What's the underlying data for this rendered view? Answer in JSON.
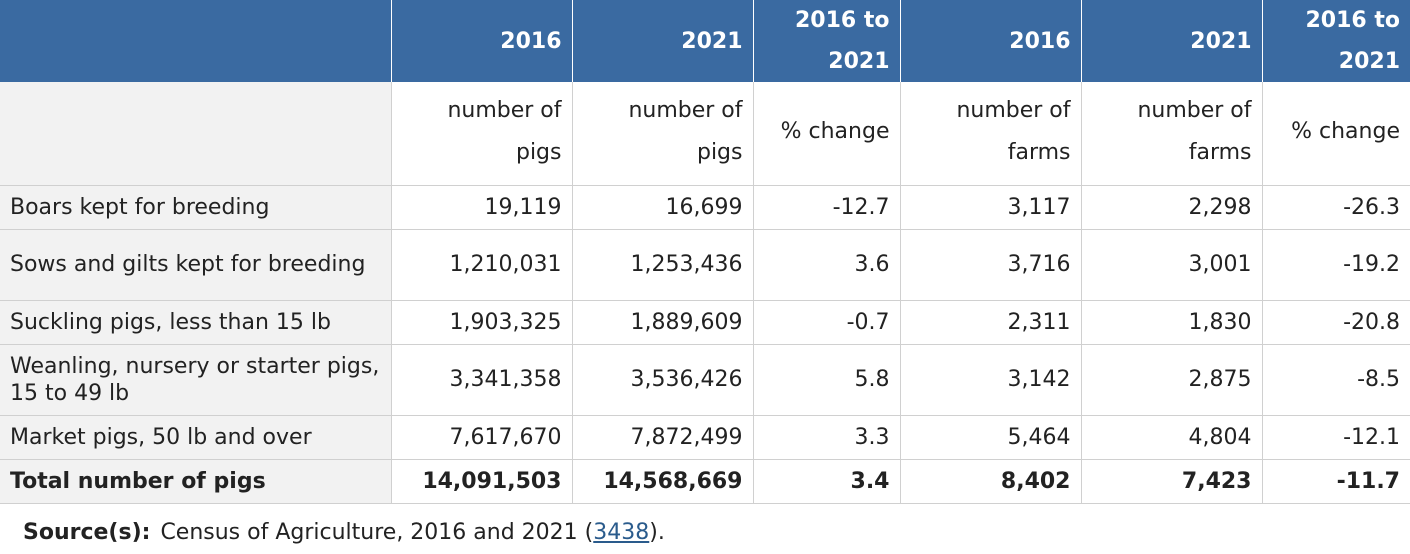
{
  "header": {
    "stub": "",
    "years": [
      "2016",
      "2021",
      "2016 to 2021",
      "2016",
      "2021",
      "2016 to 2021"
    ]
  },
  "units": [
    "number of pigs",
    "number of pigs",
    "% change",
    "number of farms",
    "number of farms",
    "% change"
  ],
  "rows": [
    {
      "label": "Boars kept for breeding",
      "values": [
        "19,119",
        "16,699",
        "-12.7",
        "3,117",
        "2,298",
        "-26.3"
      ]
    },
    {
      "label": "Sows and gilts kept for breeding",
      "values": [
        "1,210,031",
        "1,253,436",
        "3.6",
        "3,716",
        "3,001",
        "-19.2"
      ]
    },
    {
      "label": "Suckling pigs, less than 15 lb",
      "values": [
        "1,903,325",
        "1,889,609",
        "-0.7",
        "2,311",
        "1,830",
        "-20.8"
      ]
    },
    {
      "label": "Weanling, nursery or starter pigs, 15 to 49 lb",
      "values": [
        "3,341,358",
        "3,536,426",
        "5.8",
        "3,142",
        "2,875",
        "-8.5"
      ]
    },
    {
      "label": "Market pigs, 50 lb and over",
      "values": [
        "7,617,670",
        "7,872,499",
        "3.3",
        "5,464",
        "4,804",
        "-12.1"
      ]
    }
  ],
  "total": {
    "label": "Total number of pigs",
    "values": [
      "14,091,503",
      "14,568,669",
      "3.4",
      "8,402",
      "7,423",
      "-11.7"
    ]
  },
  "source": {
    "label": "Source(s):",
    "text_before": "Census of Agriculture, 2016 and 2021 (",
    "link": "3438",
    "text_after": ")."
  },
  "colors": {
    "header_bg": "#3a6aa1",
    "stub_bg": "#f2f2f2",
    "link": "#2a5b8c"
  }
}
